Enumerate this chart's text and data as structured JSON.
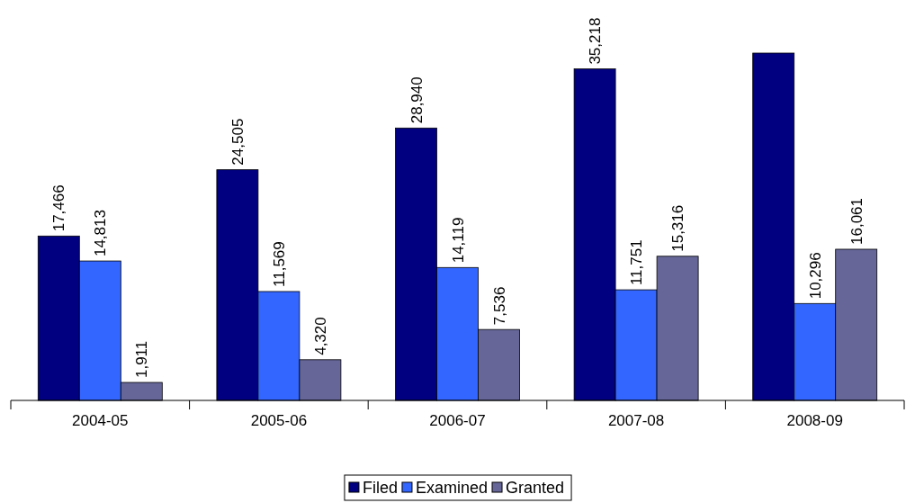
{
  "chart_data": {
    "type": "bar",
    "categories": [
      "2004-05",
      "2005-06",
      "2006-07",
      "2007-08",
      "2008-09"
    ],
    "series": [
      {
        "name": "Filed",
        "color": "#000080",
        "values": [
          17466,
          24505,
          28940,
          35218,
          36900
        ],
        "value_labels": [
          "17,466",
          "24,505",
          "28,940",
          "35,218",
          null
        ]
      },
      {
        "name": "Examined",
        "color": "#3366ff",
        "values": [
          14813,
          11569,
          14119,
          11751,
          10296
        ],
        "value_labels": [
          "14,813",
          "11,569",
          "14,119",
          "11,751",
          "10,296"
        ]
      },
      {
        "name": "Granted",
        "color": "#666699",
        "values": [
          1911,
          4320,
          7536,
          15316,
          16061
        ],
        "value_labels": [
          "1,911",
          "4,320",
          "7,536",
          "15,316",
          "16,061"
        ]
      }
    ],
    "legend": "bottom"
  }
}
